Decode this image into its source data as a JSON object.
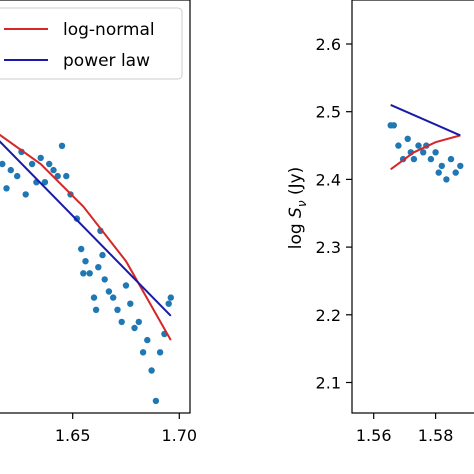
{
  "chart_data": [
    {
      "type": "scatter",
      "xlim": [
        1.615,
        1.705
      ],
      "ylim": [
        1.94,
        2.62
      ],
      "x_ticks": [
        "1.65",
        "1.70"
      ],
      "x_tick_values": [
        1.65,
        1.7
      ],
      "legend": {
        "placement": "top-right"
      },
      "colors": {
        "points": "#1f77b4",
        "log_normal": "#d62728",
        "power_law": "#1a1aa8"
      },
      "series": [
        {
          "kind": "points",
          "x": [
            1.614,
            1.617,
            1.619,
            1.621,
            1.624,
            1.626,
            1.628,
            1.631,
            1.633,
            1.635,
            1.637,
            1.639,
            1.641,
            1.643,
            1.645,
            1.647,
            1.649,
            1.652,
            1.654,
            1.655,
            1.656,
            1.658,
            1.66,
            1.661,
            1.662,
            1.663,
            1.664,
            1.665,
            1.667,
            1.669,
            1.671,
            1.673,
            1.675,
            1.677,
            1.679,
            1.681,
            1.683,
            1.685,
            1.687,
            1.689,
            1.691,
            1.693,
            1.695,
            1.696
          ],
          "y": [
            2.38,
            2.35,
            2.31,
            2.34,
            2.33,
            2.37,
            2.3,
            2.35,
            2.32,
            2.36,
            2.32,
            2.35,
            2.34,
            2.33,
            2.38,
            2.33,
            2.3,
            2.26,
            2.21,
            2.17,
            2.19,
            2.17,
            2.13,
            2.11,
            2.18,
            2.24,
            2.2,
            2.16,
            2.14,
            2.13,
            2.11,
            2.09,
            2.15,
            2.12,
            2.08,
            2.09,
            2.04,
            2.06,
            2.01,
            1.96,
            2.04,
            2.07,
            2.12,
            2.13
          ]
        },
        {
          "name": "log-normal",
          "kind": "line",
          "x": [
            1.615,
            1.635,
            1.655,
            1.675,
            1.696
          ],
          "y": [
            2.4,
            2.35,
            2.28,
            2.19,
            2.06
          ]
        },
        {
          "name": "power law",
          "kind": "line",
          "x": [
            1.615,
            1.696
          ],
          "y": [
            2.39,
            2.1
          ]
        }
      ]
    },
    {
      "type": "scatter",
      "xlim": [
        1.553,
        1.595
      ],
      "ylim": [
        2.055,
        2.665
      ],
      "ylabel": "log S_ν (Jy)",
      "ylabel_prefix": "log ",
      "ylabel_symbol": "S",
      "ylabel_subscript": "ν",
      "ylabel_unit": " (Jy)",
      "x_ticks": [
        "1.56",
        "1.58"
      ],
      "x_tick_values": [
        1.56,
        1.58
      ],
      "y_ticks": [
        "2.1",
        "2.2",
        "2.3",
        "2.4",
        "2.5",
        "2.6"
      ],
      "y_tick_values": [
        2.1,
        2.2,
        2.3,
        2.4,
        2.5,
        2.6
      ],
      "colors": {
        "points": "#1f77b4",
        "log_normal": "#d62728",
        "power_law": "#1a1aa8"
      },
      "series": [
        {
          "kind": "points",
          "x": [
            1.5655,
            1.5665,
            1.568,
            1.5695,
            1.571,
            1.572,
            1.573,
            1.5745,
            1.576,
            1.577,
            1.5785,
            1.58,
            1.581,
            1.582,
            1.5835,
            1.585,
            1.5865,
            1.588
          ],
          "y": [
            2.48,
            2.48,
            2.45,
            2.43,
            2.46,
            2.44,
            2.43,
            2.45,
            2.44,
            2.45,
            2.43,
            2.44,
            2.41,
            2.42,
            2.4,
            2.43,
            2.41,
            2.42
          ]
        },
        {
          "name": "log-normal",
          "kind": "line",
          "x": [
            1.5655,
            1.573,
            1.58,
            1.588
          ],
          "y": [
            2.415,
            2.44,
            2.455,
            2.465
          ]
        },
        {
          "name": "power law",
          "kind": "line",
          "x": [
            1.5655,
            1.588
          ],
          "y": [
            2.51,
            2.465
          ]
        }
      ]
    }
  ]
}
